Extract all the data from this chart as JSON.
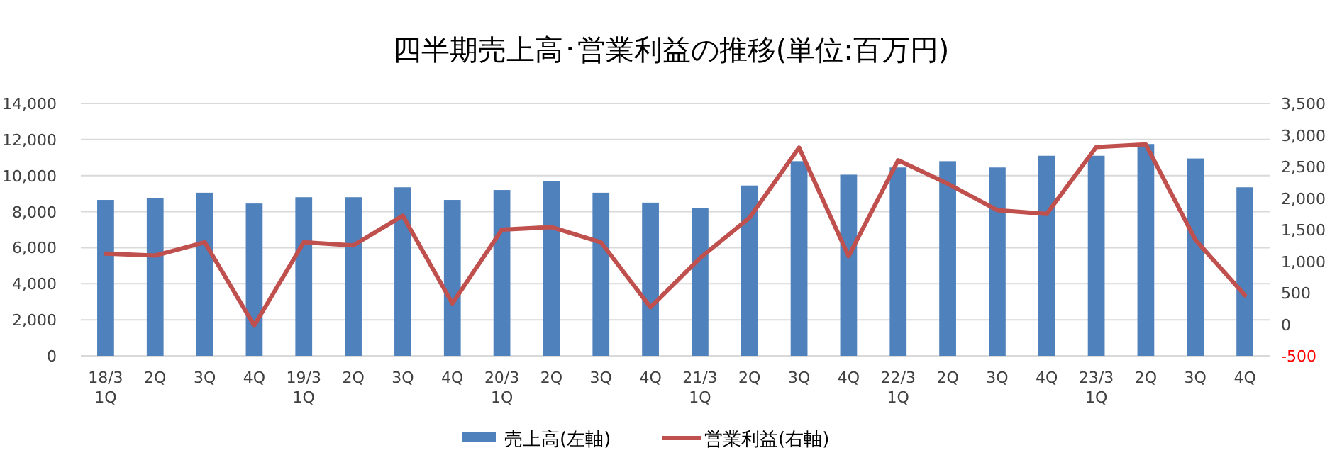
{
  "chart_data": {
    "type": "bar",
    "title": "四半期売上高･営業利益の推移(単位:百万円)",
    "categories": [
      "18/3\n1Q",
      "2Q",
      "3Q",
      "4Q",
      "19/3\n1Q",
      "2Q",
      "3Q",
      "4Q",
      "20/3\n1Q",
      "2Q",
      "3Q",
      "4Q",
      "21/3\n1Q",
      "2Q",
      "3Q",
      "4Q",
      "22/3\n1Q",
      "2Q",
      "3Q",
      "4Q",
      "23/3\n1Q",
      "2Q",
      "3Q",
      "4Q"
    ],
    "series": [
      {
        "name": "売上高(左軸)",
        "color": "#4f81bd",
        "values": [
          8650,
          8750,
          9050,
          8450,
          8800,
          8800,
          9350,
          8650,
          9200,
          9700,
          9050,
          8500,
          8200,
          9450,
          10800,
          10050,
          10450,
          10800,
          10450,
          11100,
          11100,
          11750,
          10950,
          9350
        ]
      },
      {
        "name": "営業利益(右軸)",
        "type": "line",
        "axis": "y2",
        "color": "#c0504d",
        "values": [
          1120,
          1090,
          1300,
          -20,
          1300,
          1250,
          1720,
          330,
          1500,
          1540,
          1300,
          270,
          1050,
          1690,
          2800,
          1080,
          2600,
          2230,
          1810,
          1750,
          2810,
          2850,
          1340,
          460
        ]
      }
    ],
    "ylim": [
      0,
      14000
    ],
    "yticks": [
      {
        "value": 0,
        "label": "0"
      },
      {
        "value": 2000,
        "label": "2,000"
      },
      {
        "value": 4000,
        "label": "4,000"
      },
      {
        "value": 6000,
        "label": "6,000"
      },
      {
        "value": 8000,
        "label": "8,000"
      },
      {
        "value": 10000,
        "label": "10,000"
      },
      {
        "value": 12000,
        "label": "12,000"
      },
      {
        "value": 14000,
        "label": "14,000"
      }
    ],
    "y2lim": [
      -500,
      3500
    ],
    "y2ticks": [
      {
        "value": -500,
        "label": "-500"
      },
      {
        "value": 0,
        "label": "0"
      },
      {
        "value": 500,
        "label": "500"
      },
      {
        "value": 1000,
        "label": "1,000"
      },
      {
        "value": 1500,
        "label": "1,500"
      },
      {
        "value": 2000,
        "label": "2,000"
      },
      {
        "value": 2500,
        "label": "2,500"
      },
      {
        "value": 3000,
        "label": "3,000"
      },
      {
        "value": 3500,
        "label": "3,500"
      }
    ],
    "grid": "y",
    "legend": "bottom",
    "line_style": "solid",
    "marker": "none"
  }
}
